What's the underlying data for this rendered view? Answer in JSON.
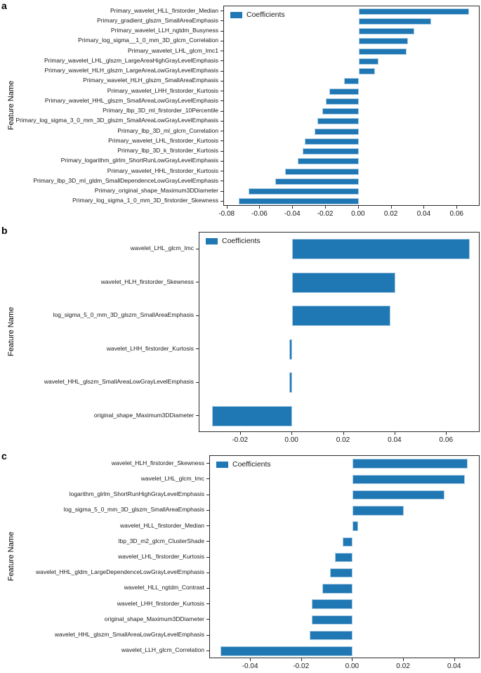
{
  "figure": {
    "ylabel": "Feature Name",
    "legend_label": "Coefficients",
    "bar_color": "#1f77b4",
    "bar_edge_color": "#a9cbe3",
    "background_color": "#ffffff"
  },
  "chart_data": [
    {
      "panel": "a",
      "type": "bar",
      "orientation": "horizontal",
      "title": "",
      "xlabel": "",
      "ylabel": "Feature Name",
      "legend": [
        "Coefficients"
      ],
      "legend_position": "upper-left",
      "grid": false,
      "xlim": [
        -0.082,
        0.074
      ],
      "xticks": [
        -0.08,
        -0.06,
        -0.04,
        -0.02,
        0.0,
        0.02,
        0.04,
        0.06
      ],
      "categories": [
        "Primary_wavelet_HLL_firstorder_Median",
        "Primary_gradient_glszm_SmallAreaEmphasis",
        "Primary_wavelet_LLH_ngtdm_Busyness",
        "Primary_log_sigma__1_0_mm_3D_glcm_Correlation",
        "Primary_wavelet_LHL_glcm_Imc1",
        "Primary_wavelet_LHL_glszm_LargeAreaHighGrayLevelEmphasis",
        "Primary_wavelet_HLH_glszm_LargeAreaLowGrayLevelEmphasis",
        "Primary_wavelet_HLH_glszm_SmallAreaEmphasis",
        "Primary_wavelet_LHH_firstorder_Kurtosis",
        "Primary_wavelet_HHL_glszm_SmallAreaLowGrayLevelEmphasis",
        "Primary_lbp_3D_ml_firstorder_10Percentile",
        "Primary_log_sigma_3_0_mm_3D_glszm_SmallAreaLowGrayLevelEmphasis",
        "Primary_lbp_3D_ml_glcm_Correlation",
        "Primary_wavelet_LHL_firstorder_Kurtosis",
        "Primary_lbp_3D_k_firstorder_Kurtosis",
        "Primary_logarithm_glrlm_ShortRunLowGrayLevelEmphasis",
        "Primary_wavelet_HHL_firstorder_Kurtosis",
        "Primary_lbp_3D_ml_gldm_SmallDependenceLowGrayLevelEmphasis",
        "Primary_original_shape_Maximum3DDiameter",
        "Primary_log_sigma_1_0_mm_3D_firstorder_Skewness"
      ],
      "values": [
        0.067,
        0.044,
        0.034,
        0.03,
        0.029,
        0.012,
        0.01,
        -0.009,
        -0.018,
        -0.02,
        -0.022,
        -0.025,
        -0.027,
        -0.033,
        -0.034,
        -0.037,
        -0.045,
        -0.051,
        -0.067,
        -0.073
      ]
    },
    {
      "panel": "b",
      "type": "bar",
      "orientation": "horizontal",
      "title": "",
      "xlabel": "",
      "ylabel": "Feature Name",
      "legend": [
        "Coefficients"
      ],
      "legend_position": "upper-left",
      "grid": false,
      "xlim": [
        -0.036,
        0.073
      ],
      "xticks": [
        -0.02,
        0.0,
        0.02,
        0.04,
        0.06
      ],
      "categories": [
        "wavelet_LHL_glcm_Imc",
        "wavelet_HLH_firstorder_Skewness",
        "log_sigma_5_0_mm_3D_glszm_SmallAreaEmphasis",
        "wavelet_LHH_firstorder_Kurtosis",
        "wavelet_HHL_glszm_SmallAreaLowGrayLevelEmphasis",
        "original_shape_Maximum3DDiameter"
      ],
      "values": [
        0.069,
        0.04,
        0.038,
        -0.001,
        -0.001,
        -0.031
      ]
    },
    {
      "panel": "c",
      "type": "bar",
      "orientation": "horizontal",
      "title": "",
      "xlabel": "",
      "ylabel": "Feature Name",
      "legend": [
        "Coefficients"
      ],
      "legend_position": "upper-left",
      "grid": false,
      "xlim": [
        -0.056,
        0.05
      ],
      "xticks": [
        -0.04,
        -0.02,
        0.0,
        0.02,
        0.04
      ],
      "categories": [
        "wavelet_HLH_firstorder_Skewness",
        "wavelet_LHL_glcm_Imc",
        "logarithm_glrlm_ShortRunHighGrayLevelEmphasis",
        "log_sigma_5_0_mm_3D_glszm_SmallAreaEmphasis",
        "wavelet_HLL_firstorder_Median",
        "lbp_3D_m2_glcm_ClusterShade",
        "wavelet_LHL_firstorder_Kurtosis",
        "wavelet_HHL_gldm_LargeDependenceLowGrayLevelEmphasis",
        "wavelet_HLL_ngtdm_Contrast",
        "wavelet_LHH_firstorder_Kurtosis",
        "original_shape_Maximum3DDiameter",
        "wavelet_HHL_glszm_SmallAreaLowGrayLevelEmphasis",
        "wavelet_LLH_glcm_Correlation"
      ],
      "values": [
        0.045,
        0.044,
        0.036,
        0.02,
        0.002,
        -0.004,
        -0.007,
        -0.009,
        -0.012,
        -0.016,
        -0.016,
        -0.017,
        -0.052
      ]
    }
  ]
}
